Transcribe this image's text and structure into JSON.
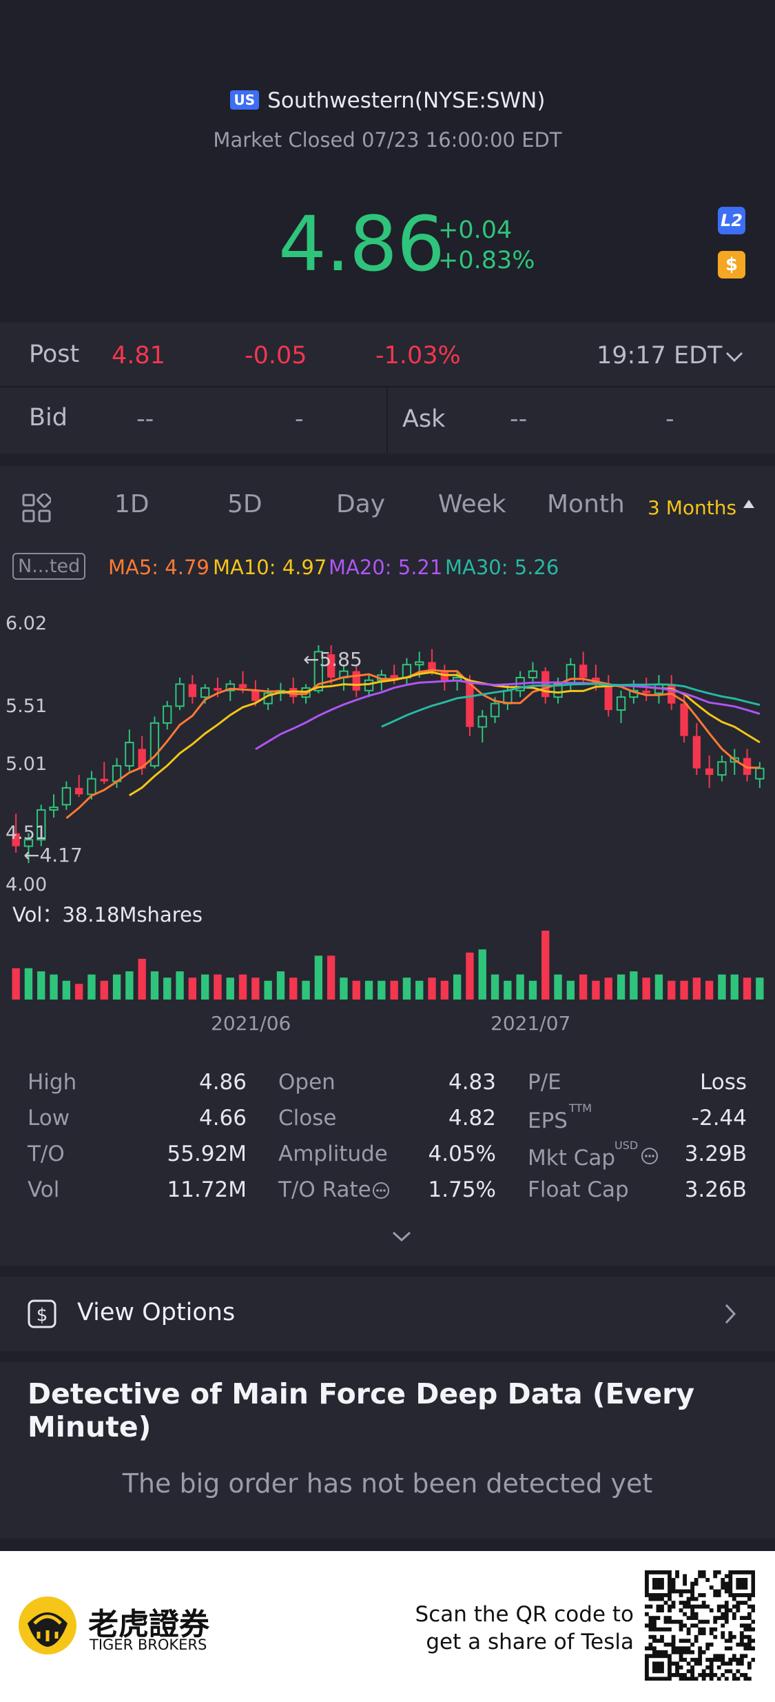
{
  "header": {
    "region_badge": "US",
    "title": "Southwestern(NYSE:SWN)",
    "status": "Market Closed 07/23 16:00:00 EDT",
    "price": "4.86",
    "change": "+0.04",
    "change_pct": "+0.83%",
    "l2_badge": "L2",
    "dollar_badge": "$"
  },
  "post": {
    "label": "Post",
    "price": "4.81",
    "change": "-0.05",
    "change_pct": "-1.03%",
    "time": "19:17 EDT"
  },
  "bid": {
    "label": "Bid",
    "value": "--",
    "size": "-"
  },
  "ask": {
    "label": "Ask",
    "value": "--",
    "size": "-"
  },
  "tabs": [
    "1D",
    "5D",
    "Day",
    "Week",
    "Month",
    "3 Months"
  ],
  "indicator_badge": "N...ted",
  "ma": [
    {
      "label": "MA5: 4.79",
      "color": "#ff7a33"
    },
    {
      "label": "MA10: 4.97",
      "color": "#f5c518"
    },
    {
      "label": "MA20: 5.21",
      "color": "#b055f5"
    },
    {
      "label": "MA30: 5.26",
      "color": "#27b8a3"
    }
  ],
  "chart": {
    "y_ticks": [
      "6.02",
      "5.51",
      "5.01",
      "4.51",
      "4.00"
    ],
    "high_marker": "←5.85",
    "low_marker": "←4.17",
    "volume_label": "Vol：38.18Mshares",
    "x_ticks": [
      "2021/06",
      "2021/07"
    ]
  },
  "chart_data": {
    "type": "candlestick",
    "ylim": [
      4.0,
      6.02
    ],
    "candles": [
      {
        "o": 4.4,
        "h": 4.55,
        "l": 4.25,
        "c": 4.3
      },
      {
        "o": 4.3,
        "h": 4.4,
        "l": 4.17,
        "c": 4.35
      },
      {
        "o": 4.35,
        "h": 4.62,
        "l": 4.3,
        "c": 4.58
      },
      {
        "o": 4.58,
        "h": 4.7,
        "l": 4.52,
        "c": 4.6
      },
      {
        "o": 4.62,
        "h": 4.8,
        "l": 4.58,
        "c": 4.75
      },
      {
        "o": 4.75,
        "h": 4.85,
        "l": 4.68,
        "c": 4.7
      },
      {
        "o": 4.7,
        "h": 4.88,
        "l": 4.66,
        "c": 4.82
      },
      {
        "o": 4.82,
        "h": 4.95,
        "l": 4.78,
        "c": 4.8
      },
      {
        "o": 4.8,
        "h": 4.98,
        "l": 4.75,
        "c": 4.92
      },
      {
        "o": 4.92,
        "h": 5.2,
        "l": 4.88,
        "c": 5.1
      },
      {
        "o": 5.05,
        "h": 5.15,
        "l": 4.85,
        "c": 4.9
      },
      {
        "o": 4.92,
        "h": 5.3,
        "l": 4.9,
        "c": 5.25
      },
      {
        "o": 5.25,
        "h": 5.42,
        "l": 5.2,
        "c": 5.38
      },
      {
        "o": 5.38,
        "h": 5.6,
        "l": 5.35,
        "c": 5.55
      },
      {
        "o": 5.55,
        "h": 5.62,
        "l": 5.4,
        "c": 5.45
      },
      {
        "o": 5.45,
        "h": 5.55,
        "l": 5.4,
        "c": 5.52
      },
      {
        "o": 5.52,
        "h": 5.6,
        "l": 5.45,
        "c": 5.5
      },
      {
        "o": 5.5,
        "h": 5.58,
        "l": 5.42,
        "c": 5.55
      },
      {
        "o": 5.55,
        "h": 5.65,
        "l": 5.48,
        "c": 5.52
      },
      {
        "o": 5.5,
        "h": 5.58,
        "l": 5.38,
        "c": 5.42
      },
      {
        "o": 5.4,
        "h": 5.52,
        "l": 5.35,
        "c": 5.48
      },
      {
        "o": 5.48,
        "h": 5.56,
        "l": 5.42,
        "c": 5.5
      },
      {
        "o": 5.52,
        "h": 5.6,
        "l": 5.4,
        "c": 5.45
      },
      {
        "o": 5.45,
        "h": 5.55,
        "l": 5.4,
        "c": 5.52
      },
      {
        "o": 5.5,
        "h": 5.85,
        "l": 5.48,
        "c": 5.8
      },
      {
        "o": 5.78,
        "h": 5.85,
        "l": 5.55,
        "c": 5.6
      },
      {
        "o": 5.6,
        "h": 5.7,
        "l": 5.5,
        "c": 5.65
      },
      {
        "o": 5.65,
        "h": 5.7,
        "l": 5.45,
        "c": 5.5
      },
      {
        "o": 5.5,
        "h": 5.62,
        "l": 5.45,
        "c": 5.58
      },
      {
        "o": 5.58,
        "h": 5.66,
        "l": 5.5,
        "c": 5.62
      },
      {
        "o": 5.62,
        "h": 5.7,
        "l": 5.55,
        "c": 5.6
      },
      {
        "o": 5.6,
        "h": 5.75,
        "l": 5.55,
        "c": 5.7
      },
      {
        "o": 5.7,
        "h": 5.8,
        "l": 5.6,
        "c": 5.72
      },
      {
        "o": 5.72,
        "h": 5.82,
        "l": 5.62,
        "c": 5.65
      },
      {
        "o": 5.65,
        "h": 5.7,
        "l": 5.5,
        "c": 5.58
      },
      {
        "o": 5.58,
        "h": 5.65,
        "l": 5.5,
        "c": 5.6
      },
      {
        "o": 5.58,
        "h": 5.62,
        "l": 5.15,
        "c": 5.22
      },
      {
        "o": 5.22,
        "h": 5.35,
        "l": 5.1,
        "c": 5.3
      },
      {
        "o": 5.3,
        "h": 5.45,
        "l": 5.25,
        "c": 5.4
      },
      {
        "o": 5.4,
        "h": 5.55,
        "l": 5.35,
        "c": 5.5
      },
      {
        "o": 5.5,
        "h": 5.65,
        "l": 5.45,
        "c": 5.6
      },
      {
        "o": 5.6,
        "h": 5.72,
        "l": 5.55,
        "c": 5.65
      },
      {
        "o": 5.65,
        "h": 5.68,
        "l": 5.4,
        "c": 5.45
      },
      {
        "o": 5.45,
        "h": 5.6,
        "l": 5.4,
        "c": 5.55
      },
      {
        "o": 5.55,
        "h": 5.75,
        "l": 5.5,
        "c": 5.7
      },
      {
        "o": 5.7,
        "h": 5.8,
        "l": 5.55,
        "c": 5.6
      },
      {
        "o": 5.6,
        "h": 5.7,
        "l": 5.5,
        "c": 5.55
      },
      {
        "o": 5.55,
        "h": 5.62,
        "l": 5.3,
        "c": 5.35
      },
      {
        "o": 5.35,
        "h": 5.5,
        "l": 5.25,
        "c": 5.45
      },
      {
        "o": 5.45,
        "h": 5.58,
        "l": 5.4,
        "c": 5.5
      },
      {
        "o": 5.5,
        "h": 5.6,
        "l": 5.42,
        "c": 5.48
      },
      {
        "o": 5.48,
        "h": 5.62,
        "l": 5.4,
        "c": 5.55
      },
      {
        "o": 5.55,
        "h": 5.62,
        "l": 5.35,
        "c": 5.4
      },
      {
        "o": 5.4,
        "h": 5.48,
        "l": 5.1,
        "c": 5.15
      },
      {
        "o": 5.15,
        "h": 5.25,
        "l": 4.85,
        "c": 4.9
      },
      {
        "o": 4.9,
        "h": 5.0,
        "l": 4.75,
        "c": 4.85
      },
      {
        "o": 4.85,
        "h": 5.0,
        "l": 4.8,
        "c": 4.95
      },
      {
        "o": 4.95,
        "h": 5.05,
        "l": 4.85,
        "c": 4.98
      },
      {
        "o": 4.98,
        "h": 5.05,
        "l": 4.8,
        "c": 4.85
      },
      {
        "o": 4.82,
        "h": 4.95,
        "l": 4.75,
        "c": 4.9
      }
    ],
    "volumes": [
      1.0,
      1.0,
      0.9,
      0.8,
      0.6,
      0.5,
      0.8,
      0.6,
      0.8,
      0.9,
      1.3,
      0.9,
      0.7,
      0.9,
      0.7,
      0.8,
      0.8,
      0.7,
      0.8,
      0.7,
      0.6,
      0.9,
      0.7,
      0.6,
      1.4,
      1.4,
      0.7,
      0.6,
      0.6,
      0.6,
      0.6,
      0.7,
      0.6,
      0.7,
      0.6,
      0.8,
      1.5,
      1.6,
      0.8,
      0.6,
      0.8,
      0.6,
      2.2,
      0.8,
      0.6,
      0.8,
      0.6,
      0.7,
      0.8,
      0.9,
      0.7,
      0.8,
      0.6,
      0.6,
      0.7,
      0.6,
      0.8,
      0.8,
      0.7,
      0.7
    ]
  },
  "stats": [
    [
      {
        "label": "High",
        "value": "4.86"
      },
      {
        "label": "Open",
        "value": "4.83"
      },
      {
        "label": "P/E",
        "value": "Loss"
      }
    ],
    [
      {
        "label": "Low",
        "value": "4.66"
      },
      {
        "label": "Close",
        "value": "4.82"
      },
      {
        "label": "EPS",
        "value": "-2.44"
      }
    ],
    [
      {
        "label": "T/O",
        "value": "55.92M"
      },
      {
        "label": "Amplitude",
        "value": "4.05%"
      },
      {
        "label": "Mkt Cap",
        "value": "3.29B"
      }
    ],
    [
      {
        "label": "Vol",
        "value": "11.72M"
      },
      {
        "label": "T/O Rate",
        "value": "1.75%"
      },
      {
        "label": "Float Cap",
        "value": "3.26B"
      }
    ]
  ],
  "stat_sups": {
    "eps": "TTM",
    "mkt_cap": "USD"
  },
  "options": {
    "label": "View Options"
  },
  "detective": {
    "title": "Detective of Main Force Deep Data (Every Minute)",
    "message": "The big order has not been detected yet"
  },
  "footer": {
    "brand_cn": "老虎證券",
    "brand_en": "TIGER BROKERS",
    "scan_line1": "Scan the QR code to",
    "scan_line2": "get a share of Tesla"
  }
}
